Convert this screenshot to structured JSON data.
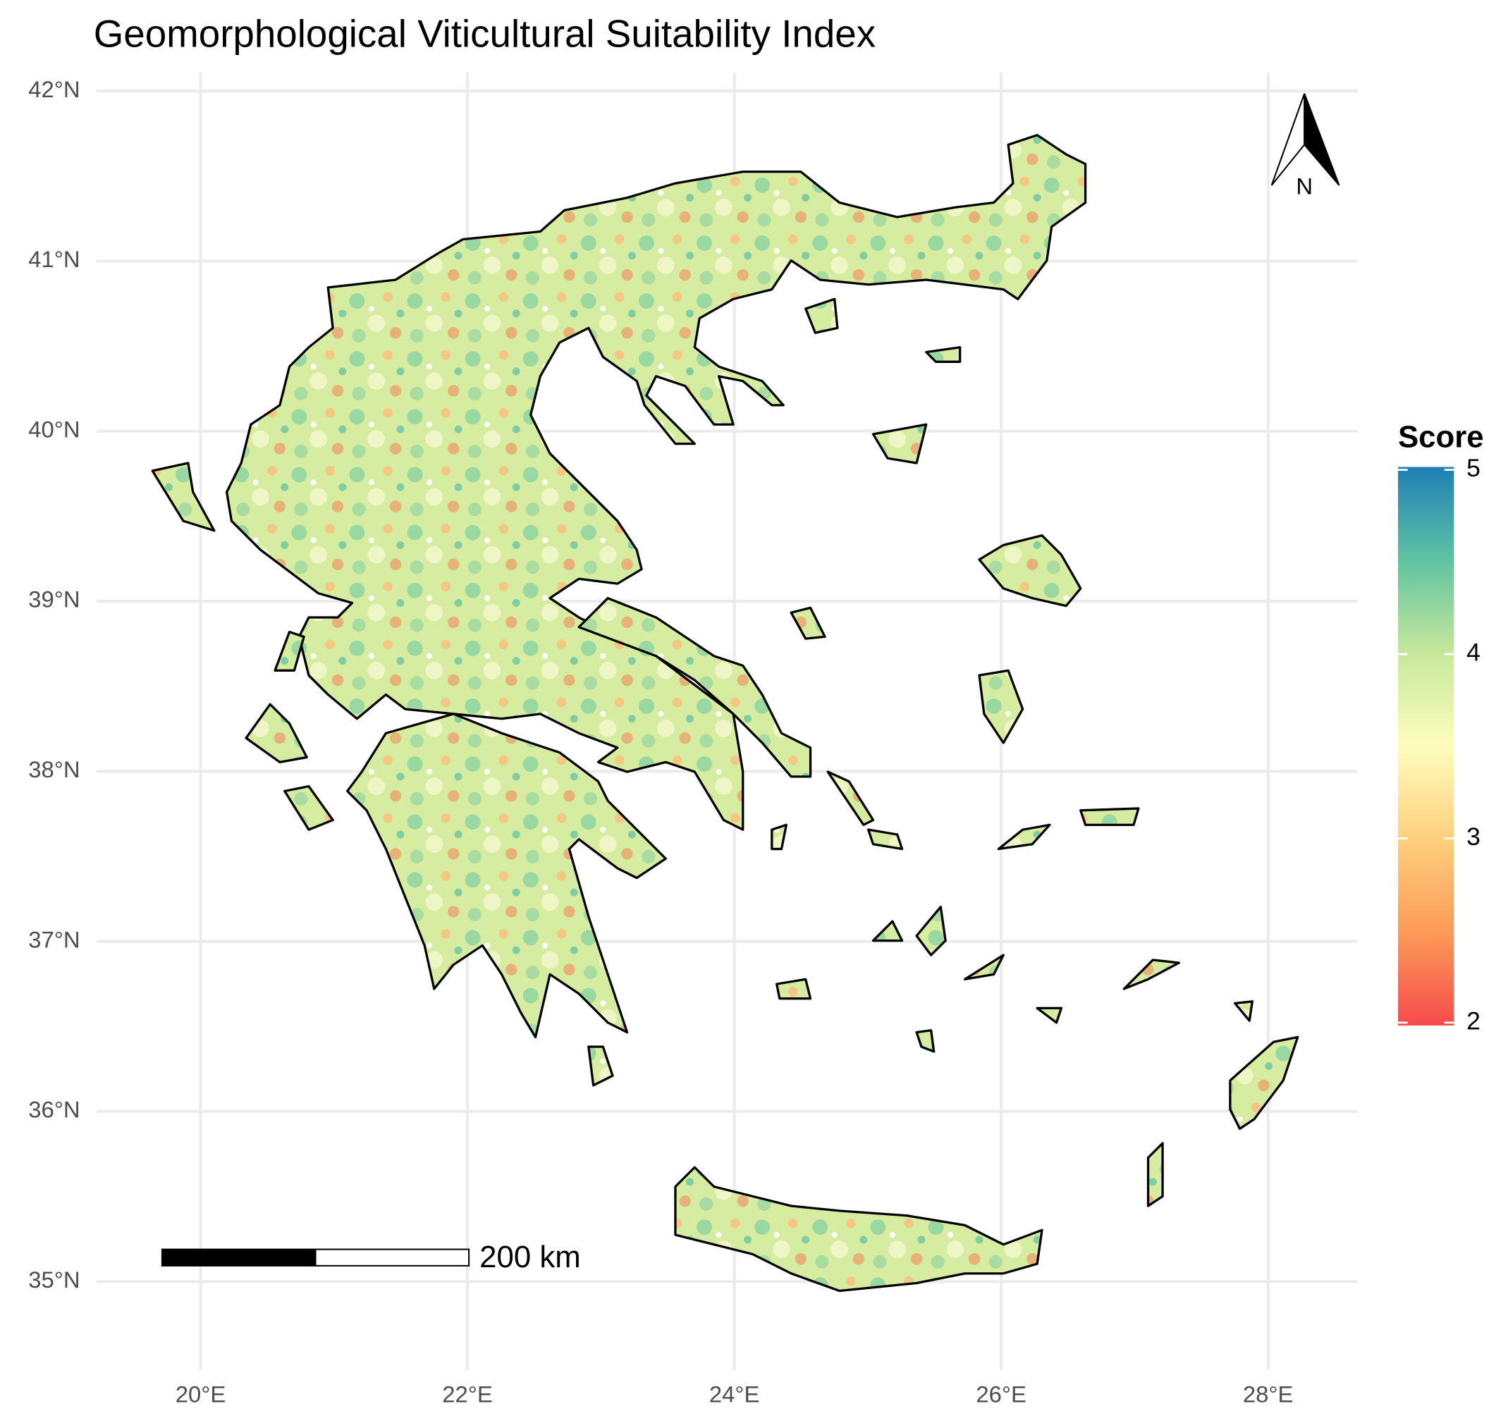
{
  "chart_data": {
    "type": "map",
    "title": "Geomorphological Viticultural Suitability Index",
    "xlim": [
      19.22,
      28.67
    ],
    "ylim": [
      34.48,
      42.11
    ],
    "xticks": [
      {
        "value": 20,
        "label": "20°E"
      },
      {
        "value": 22,
        "label": "22°E"
      },
      {
        "value": 24,
        "label": "24°E"
      },
      {
        "value": 26,
        "label": "26°E"
      },
      {
        "value": 28,
        "label": "28°E"
      }
    ],
    "yticks": [
      {
        "value": 35,
        "label": "35°N"
      },
      {
        "value": 36,
        "label": "36°N"
      },
      {
        "value": 37,
        "label": "37°N"
      },
      {
        "value": 38,
        "label": "38°N"
      },
      {
        "value": 39,
        "label": "39°N"
      },
      {
        "value": 40,
        "label": "40°N"
      },
      {
        "value": 41,
        "label": "41°N"
      },
      {
        "value": 42,
        "label": "42°N"
      }
    ],
    "grid": true,
    "legend": {
      "title": "Score",
      "range": [
        2,
        5
      ],
      "ticks": [
        2,
        3,
        4,
        5
      ],
      "colors": [
        "#f54b4b",
        "#fc9b58",
        "#fdd07d",
        "#fefdbe",
        "#c7e89c",
        "#5fc3a2",
        "#1f7fb6"
      ]
    },
    "scale_bar": {
      "label": "200 km"
    },
    "north_arrow": {
      "label": "N"
    }
  }
}
